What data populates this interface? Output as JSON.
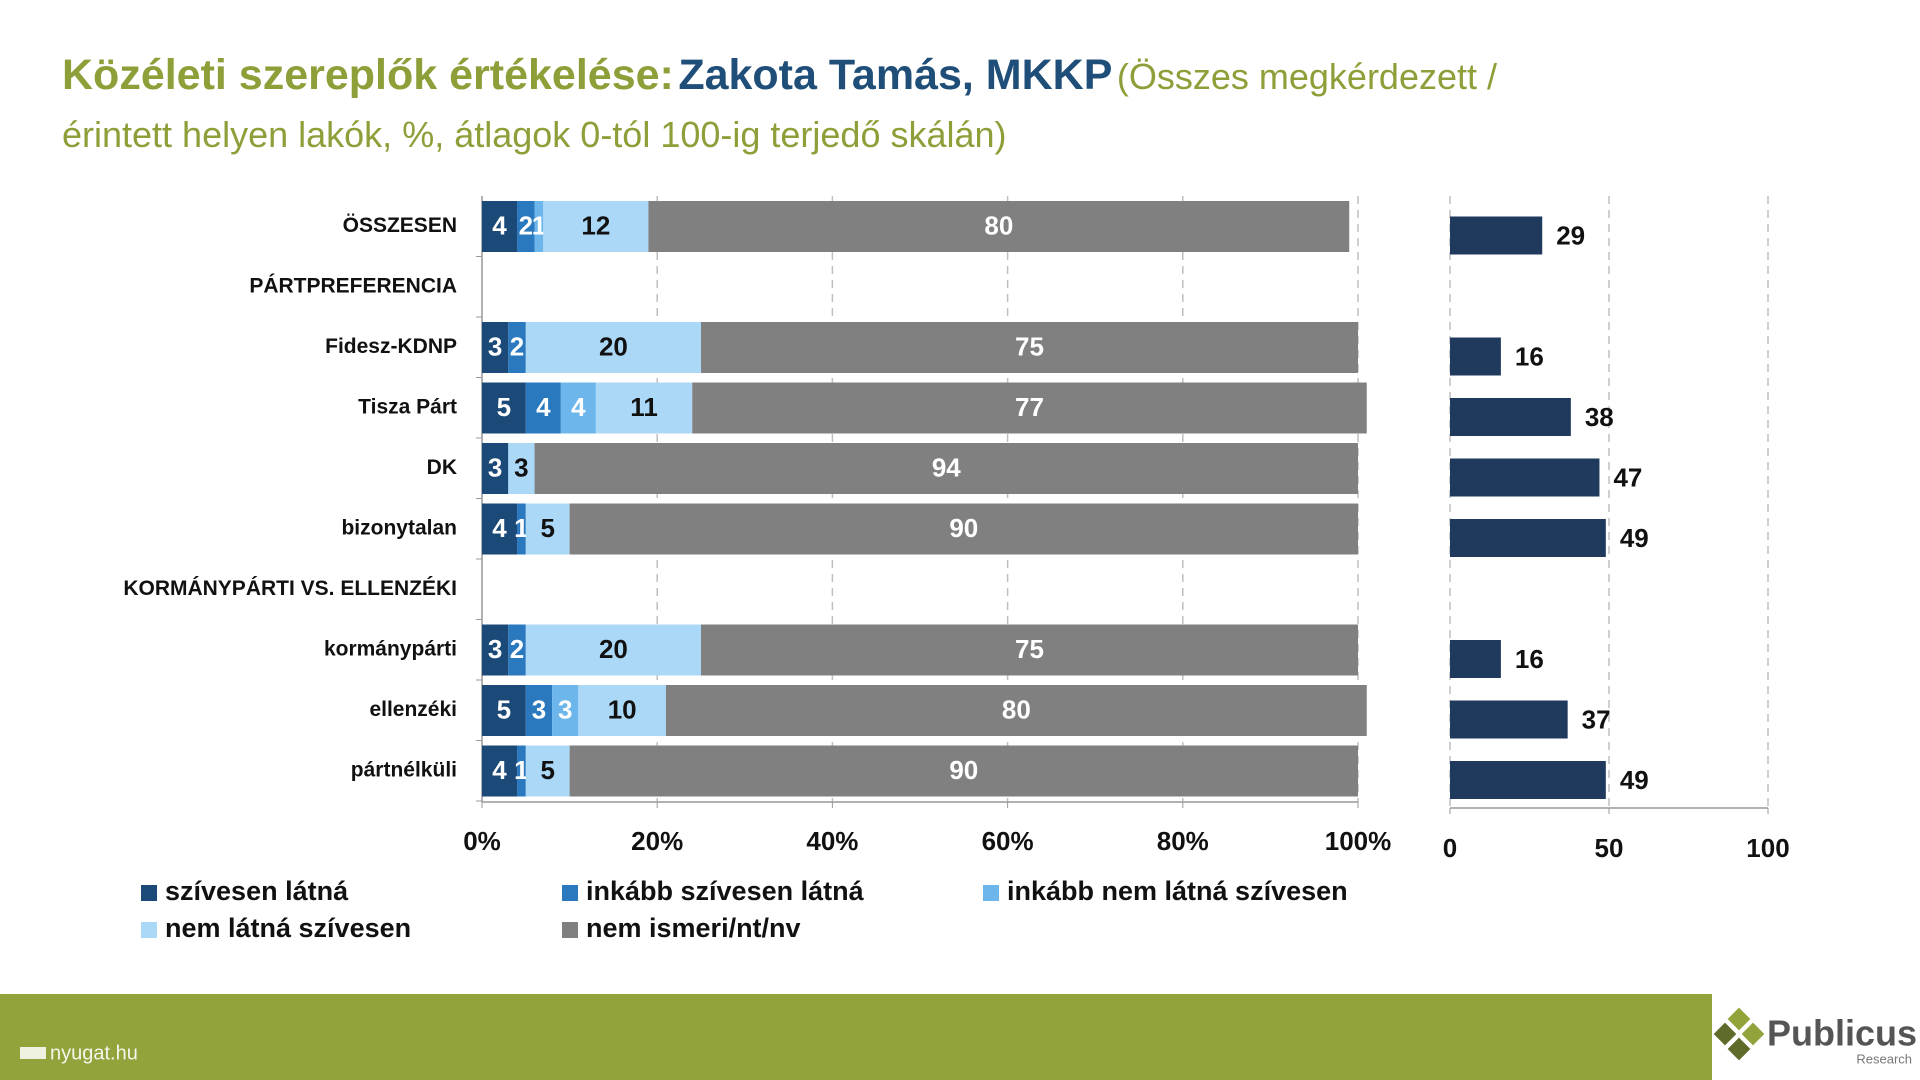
{
  "header": {
    "title_main": "Közéleti szereplők értékelése:",
    "title_person": "Zakota Tamás, MKKP",
    "subtitle_lines": [
      "(Összes megkérdezett /",
      "érintett helyen lakók, %, átlagok 0-tól 100-ig terjedő skálán)"
    ]
  },
  "chart_data": [
    {
      "type": "bar",
      "orientation": "horizontal",
      "stacked": true,
      "categories": [
        "ÖSSZESEN",
        "PÁRTPREFERENCIA",
        "Fidesz-KDNP",
        "Tisza Párt",
        "DK",
        "bizonytalan",
        "KORMÁNYPÁRTI VS. ELLENZÉKI",
        "kormánypárti",
        "ellenzéki",
        "pártnélküli"
      ],
      "series": [
        {
          "name": "szívesen látná",
          "color": "#1b4a78",
          "label_color": "#ffffff",
          "values": [
            4,
            null,
            3,
            5,
            3,
            4,
            null,
            3,
            5,
            4
          ]
        },
        {
          "name": "inkább szívesen látná",
          "color": "#2a78bd",
          "label_color": "#ffffff",
          "values": [
            2,
            null,
            2,
            4,
            null,
            1,
            null,
            2,
            3,
            1
          ]
        },
        {
          "name": "inkább nem látná szívesen",
          "color": "#6cb6ec",
          "label_color": "#ffffff",
          "values": [
            1,
            null,
            null,
            4,
            null,
            null,
            null,
            null,
            3,
            null
          ]
        },
        {
          "name": "nem látná szívesen",
          "color": "#acd8f7",
          "label_color": "#111111",
          "values": [
            12,
            null,
            20,
            11,
            3,
            5,
            null,
            20,
            10,
            5
          ]
        },
        {
          "name": "nem ismeri/nt/nv",
          "color": "#808080",
          "label_color": "#ffffff",
          "values": [
            80,
            null,
            75,
            77,
            94,
            90,
            null,
            75,
            80,
            90
          ]
        }
      ],
      "xlim": [
        0,
        100
      ],
      "xticks": [
        {
          "value": 0,
          "label": "0%"
        },
        {
          "value": 20,
          "label": "20%"
        },
        {
          "value": 40,
          "label": "40%"
        },
        {
          "value": 60,
          "label": "60%"
        },
        {
          "value": 80,
          "label": "80%"
        },
        {
          "value": 100,
          "label": "100%"
        }
      ],
      "grid": true
    },
    {
      "type": "bar",
      "orientation": "horizontal",
      "color": "#1f3a5c",
      "values": [
        29,
        null,
        16,
        38,
        47,
        49,
        null,
        16,
        37,
        49
      ],
      "xlim": [
        0,
        100
      ],
      "xticks": [
        0,
        50,
        100
      ],
      "grid": true
    }
  ],
  "footer": {
    "source": "nyugat.hu",
    "brand": "Publicus",
    "brand_sub": "Research"
  }
}
